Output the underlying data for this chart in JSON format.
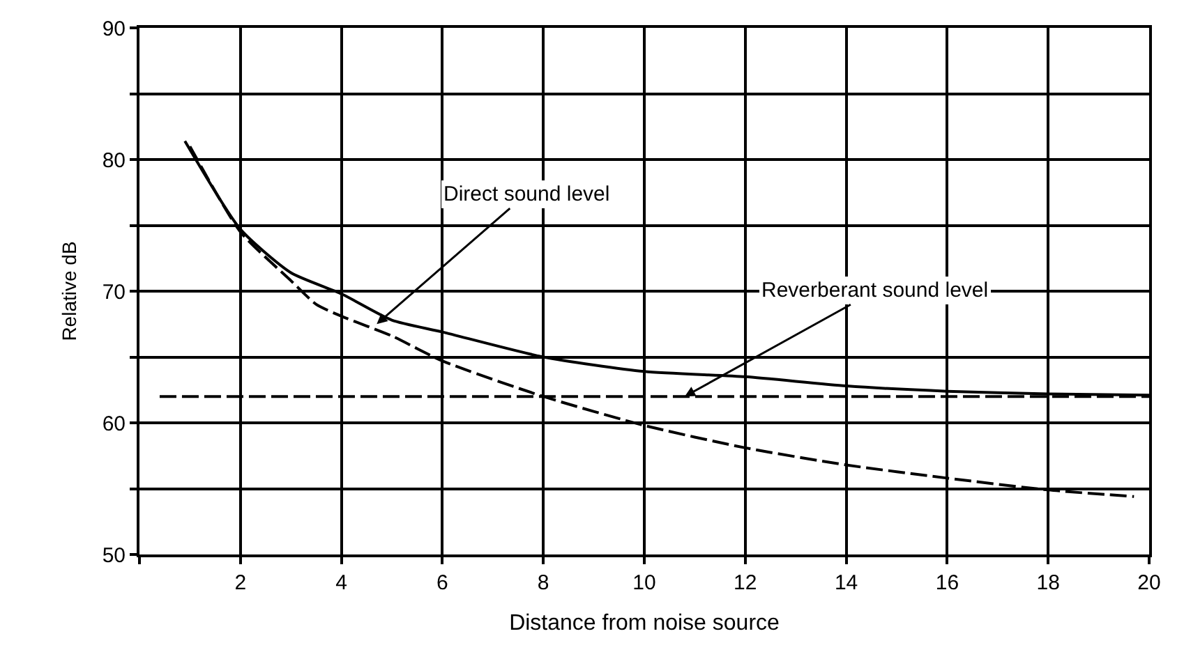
{
  "chart_data": {
    "type": "line",
    "xlabel": "Distance from noise source",
    "ylabel": "Relative dB",
    "xlim": [
      0,
      20
    ],
    "xticks": [
      {
        "value": 0,
        "label": null
      },
      2,
      4,
      6,
      8,
      10,
      12,
      14,
      16,
      18,
      20
    ],
    "ylim": [
      50,
      90
    ],
    "yticks": [
      50,
      {
        "value": 55,
        "label": null
      },
      60,
      {
        "value": 65,
        "label": null
      },
      70,
      {
        "value": 75,
        "label": null
      },
      80,
      {
        "value": 85,
        "label": null
      },
      90
    ],
    "grid": true,
    "marker": "none",
    "series": [
      {
        "color": "#000000",
        "line_style": "solid",
        "x": [
          0.9,
          2,
          3,
          4,
          5,
          6,
          8,
          10,
          12,
          14,
          16,
          18,
          20
        ],
        "values": [
          81.4,
          74.7,
          71.4,
          69.8,
          67.8,
          66.9,
          65.0,
          63.9,
          63.5,
          62.8,
          62.4,
          62.2,
          62.1
        ]
      },
      {
        "color": "#000000",
        "line_style": "dashed",
        "x": [
          1,
          2,
          3,
          3.5,
          4,
          5,
          6,
          8,
          10,
          12,
          14,
          16,
          18,
          19.7
        ],
        "values": [
          81.0,
          74.5,
          70.8,
          69.0,
          68.1,
          66.6,
          64.7,
          62.0,
          59.8,
          58.1,
          56.8,
          55.8,
          54.9,
          54.4
        ]
      },
      {
        "color": "#000000",
        "line_style": "dashed",
        "x": [
          0.4,
          20
        ],
        "values": [
          62.0,
          62.0
        ]
      }
    ],
    "annotations": [
      {
        "text": "Direct sound level",
        "x": 4.7,
        "y": 67.5
      },
      {
        "text": "Reverberant sound level",
        "x": 10.8,
        "y": 62.0
      }
    ]
  }
}
